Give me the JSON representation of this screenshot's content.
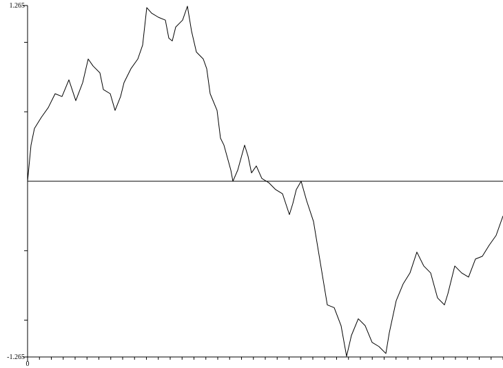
{
  "chart_data": {
    "type": "line",
    "xlim": [
      0,
      690
    ],
    "xticks": [
      0
    ],
    "minor_xticks": [
      0,
      17.25,
      34.5,
      51.75,
      69,
      86.25,
      103.5,
      120.75,
      138,
      155.25,
      172.5,
      189.75,
      207,
      224.25,
      241.5,
      258.75,
      276,
      293.25,
      310.5,
      327.75,
      345,
      362.25,
      379.5,
      396.75,
      414,
      431.25,
      448.5,
      465.75,
      483,
      500.25,
      517.5,
      534.75,
      552,
      569.25,
      586.5,
      603.75,
      621,
      638.25,
      655.5,
      672.75,
      690
    ],
    "ylim": [
      -1.265,
      1.265
    ],
    "yticks": [
      -1.265,
      1.265
    ],
    "minor_yticks": [
      -1,
      -0.5,
      0.5,
      1
    ],
    "hline": 0,
    "x": [
      0,
      5,
      10,
      20,
      30,
      40,
      50,
      60,
      70,
      80,
      88,
      95,
      105,
      110,
      120,
      127,
      135,
      140,
      150,
      160,
      167,
      173,
      180,
      190,
      200,
      205,
      210,
      215,
      225,
      232,
      238,
      245,
      255,
      260,
      265,
      275,
      280,
      285,
      295,
      298,
      305,
      315,
      320,
      325,
      332,
      340,
      350,
      360,
      370,
      380,
      385,
      390,
      397,
      405,
      415,
      425,
      435,
      445,
      455,
      463,
      470,
      480,
      490,
      500,
      510,
      520,
      525,
      535,
      545,
      555,
      565,
      575,
      585,
      595,
      605,
      610,
      620,
      630,
      640,
      650,
      660,
      670,
      680,
      690
    ],
    "series": [
      {
        "color": "#000000",
        "values": [
          0,
          0.26,
          0.38,
          0.46,
          0.53,
          0.63,
          0.61,
          0.73,
          0.58,
          0.71,
          0.88,
          0.83,
          0.78,
          0.66,
          0.63,
          0.51,
          0.61,
          0.71,
          0.81,
          0.88,
          0.98,
          1.25,
          1.21,
          1.18,
          1.16,
          1.03,
          1.01,
          1.11,
          1.16,
          1.26,
          1.08,
          0.93,
          0.88,
          0.81,
          0.63,
          0.51,
          0.31,
          0.26,
          0.08,
          0,
          0.08,
          0.26,
          0.18,
          0.06,
          0.11,
          0.02,
          -0.01,
          -0.06,
          -0.09,
          -0.24,
          -0.16,
          -0.06,
          0,
          -0.14,
          -0.29,
          -0.59,
          -0.89,
          -0.91,
          -1.04,
          -1.26,
          -1.11,
          -0.99,
          -1.04,
          -1.16,
          -1.19,
          -1.24,
          -1.09,
          -0.86,
          -0.74,
          -0.66,
          -0.51,
          -0.61,
          -0.66,
          -0.84,
          -0.89,
          -0.81,
          -0.61,
          -0.66,
          -0.69,
          -0.56,
          -0.54,
          -0.46,
          -0.39,
          -0.25
        ]
      }
    ]
  }
}
